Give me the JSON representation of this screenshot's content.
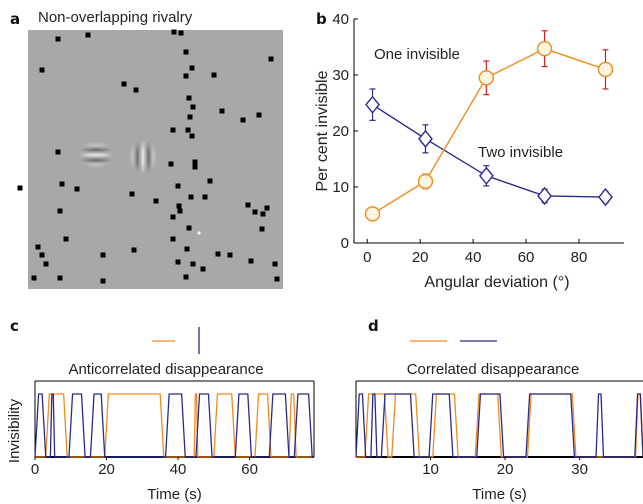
{
  "panels": {
    "a": {
      "letter": "a",
      "title": "Non-overlapping rivalry"
    },
    "b": {
      "letter": "b"
    },
    "c": {
      "letter": "c",
      "title": "Anticorrelated disappearance"
    },
    "d": {
      "letter": "d",
      "title": "Correlated disappearance"
    }
  },
  "colors": {
    "orange": "#f28a1e",
    "blue": "#2a2a8c",
    "red_error": "#d22020",
    "stim_bg": "#a8a8a8"
  },
  "chart_data": [
    {
      "type": "line",
      "panel": "b",
      "xlabel": "Angular deviation (°)",
      "ylabel": "Per cent invisible",
      "xlim": [
        -5,
        97
      ],
      "ylim": [
        0,
        40
      ],
      "x_ticks": [
        0,
        20,
        40,
        60,
        80
      ],
      "y_ticks": [
        0,
        10,
        20,
        30,
        40
      ],
      "x": [
        2,
        22,
        45,
        67,
        90
      ],
      "series": [
        {
          "name": "One invisible",
          "values": [
            5.2,
            11,
            29.5,
            34.7,
            31
          ],
          "errors": [
            0.6,
            1.3,
            3,
            3.2,
            3.5
          ],
          "marker": "circle",
          "color": "#f28a1e"
        },
        {
          "name": "Two invisible",
          "values": [
            24.7,
            18.6,
            12,
            8.4,
            8.2
          ],
          "errors": [
            2.8,
            2.5,
            1.8,
            1.2,
            1.0
          ],
          "marker": "diamond",
          "color": "#2a2a8c"
        }
      ]
    },
    {
      "type": "line",
      "panel": "c",
      "xlabel": "Time (s)",
      "ylabel": "Invisibility",
      "xlim": [
        0,
        78
      ],
      "x_ticks": [
        0,
        20,
        40,
        60
      ],
      "series": [
        {
          "color": "#f28a1e",
          "segments": [
            [
              3,
              9
            ],
            [
              19.5,
              36
            ],
            [
              44.5,
              45.5
            ],
            [
              50,
              56
            ],
            [
              61.5,
              66
            ],
            [
              71,
              73
            ]
          ]
        },
        {
          "color": "#2a2a8c",
          "segments": [
            [
              0,
              3
            ],
            [
              4.3,
              5.5
            ],
            [
              9.5,
              14
            ],
            [
              15.5,
              19.5
            ],
            [
              36.5,
              42
            ],
            [
              45,
              49.5
            ],
            [
              56,
              60.5
            ],
            [
              65.5,
              71
            ],
            [
              72.5,
              77.5
            ]
          ]
        }
      ]
    },
    {
      "type": "line",
      "panel": "d",
      "xlabel": "Time (s)",
      "x_ticks": [
        10,
        20,
        30
      ],
      "xlim": [
        0,
        38.5
      ],
      "series": [
        {
          "color": "#f28a1e",
          "segments": [
            [
              1.2,
              4.3
            ],
            [
              4.8,
              8.5
            ],
            [
              10.3,
              13.7
            ],
            [
              16,
              19.5
            ],
            [
              23,
              29.5
            ],
            [
              37.5,
              38.5
            ]
          ]
        },
        {
          "color": "#2a2a8c",
          "segments": [
            [
              0,
              1.3
            ],
            [
              2,
              2.8
            ],
            [
              3.4,
              7.8
            ],
            [
              9.8,
              13
            ],
            [
              16.2,
              19.8
            ],
            [
              22.8,
              29.3
            ],
            [
              32.2,
              33.2
            ],
            [
              37.4,
              38.5
            ]
          ]
        }
      ]
    }
  ]
}
